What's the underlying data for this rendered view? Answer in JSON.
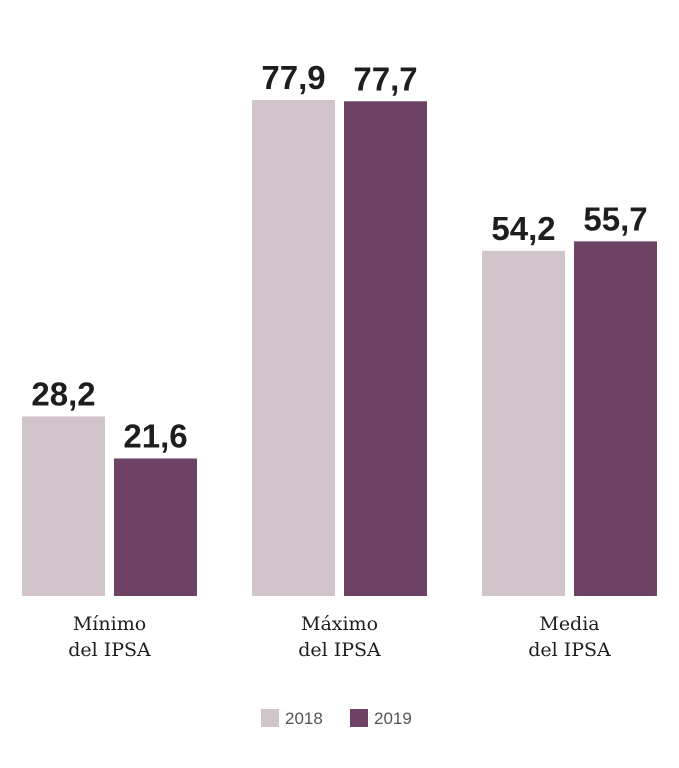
{
  "chart_data": {
    "type": "bar",
    "categories": [
      [
        "Mínimo",
        "del IPSA"
      ],
      [
        "Máximo",
        "del IPSA"
      ],
      [
        "Media",
        "del IPSA"
      ]
    ],
    "series": [
      {
        "name": "2018",
        "color": "#d1c4cb",
        "values": [
          28.2,
          77.9,
          54.2
        ],
        "labels": [
          "28,2",
          "77,9",
          "54,2"
        ]
      },
      {
        "name": "2019",
        "color": "#6d4264",
        "values": [
          21.6,
          77.7,
          55.7
        ],
        "labels": [
          "21,6",
          "77,7",
          "55,7"
        ]
      }
    ],
    "ylim": [
      0,
      77.9
    ],
    "grid": false,
    "legend": "bottom-center"
  }
}
